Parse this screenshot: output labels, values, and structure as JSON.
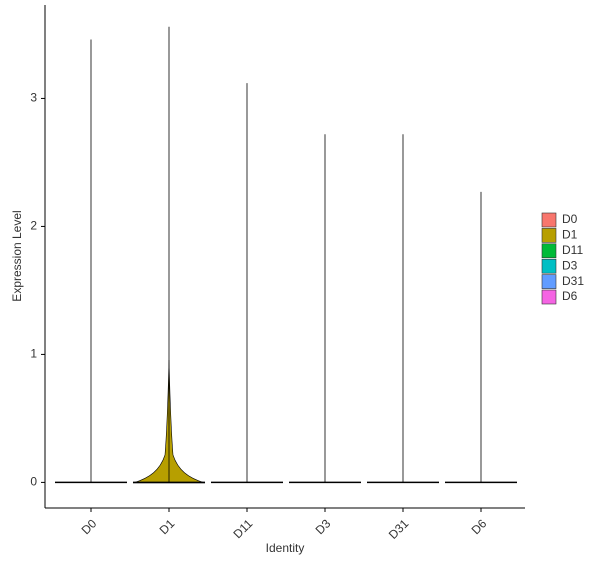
{
  "chart_data": {
    "type": "violin",
    "x_label": "Identity",
    "y_label": "Expression Level",
    "categories": [
      "D0",
      "D1",
      "D11",
      "D3",
      "D31",
      "D6"
    ],
    "values": [
      3.46,
      3.56,
      3.12,
      2.72,
      2.72,
      2.27
    ],
    "colors": [
      "#F8766D",
      "#B79F00",
      "#00BA38",
      "#00BFC4",
      "#619CFF",
      "#F564E3"
    ],
    "ylim": [
      -0.2,
      3.73
    ],
    "yticks": [
      0,
      1,
      2,
      3
    ]
  }
}
